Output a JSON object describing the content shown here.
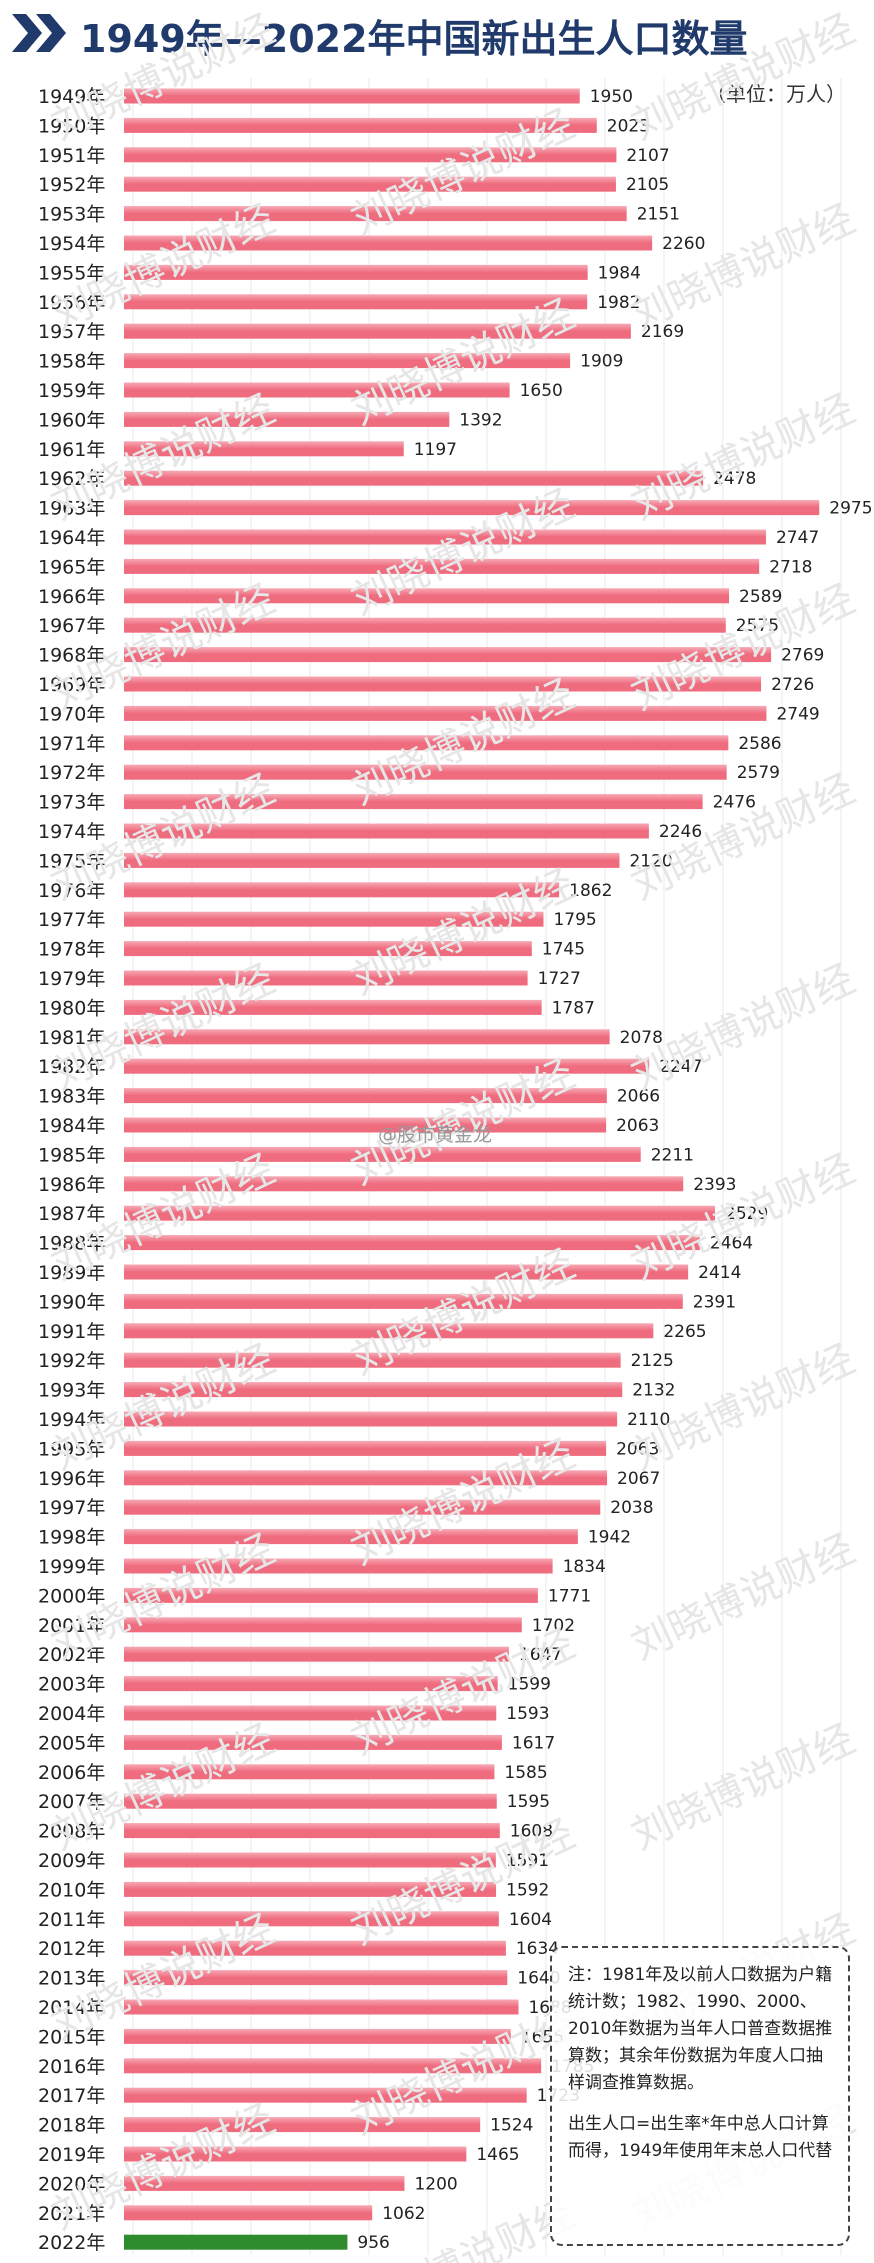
{
  "header": {
    "title": "1949年—2022年中国新出生人口数量",
    "unit": "（单位：万人）"
  },
  "watermark": {
    "text": "刘晓博说财经"
  },
  "weibo": {
    "text": "@股市黄金龙"
  },
  "note": {
    "paragraph1": "注：1981年及以前人口数据为户籍统计数；1982、1990、2000、2010年数据为当年人口普查数据推算数；其余年份数据为年度人口抽样调查推算数据。",
    "paragraph2": "出生人口=出生率*年中总人口计算而得，1949年使用年末总人口代替"
  },
  "colors": {
    "bar": "#ef6b7e",
    "bar_light": "#f7a9b4",
    "highlight_bar": "#2e8b2e",
    "title": "#1f3a6b",
    "chevron": "#1f3a6b"
  },
  "chart_data": {
    "type": "bar",
    "orientation": "horizontal",
    "category_suffix": "年",
    "highlight_category": "2022",
    "categories": [
      "1949",
      "1950",
      "1951",
      "1952",
      "1953",
      "1954",
      "1955",
      "1956",
      "1957",
      "1958",
      "1959",
      "1960",
      "1961",
      "1962",
      "1963",
      "1964",
      "1965",
      "1966",
      "1967",
      "1968",
      "1969",
      "1970",
      "1971",
      "1972",
      "1973",
      "1974",
      "1975",
      "1976",
      "1977",
      "1978",
      "1979",
      "1980",
      "1981",
      "1982",
      "1983",
      "1984",
      "1985",
      "1986",
      "1987",
      "1988",
      "1989",
      "1990",
      "1991",
      "1992",
      "1993",
      "1994",
      "1995",
      "1996",
      "1997",
      "1998",
      "1999",
      "2000",
      "2001",
      "2002",
      "2003",
      "2004",
      "2005",
      "2006",
      "2007",
      "2008",
      "2009",
      "2010",
      "2011",
      "2012",
      "2013",
      "2014",
      "2015",
      "2016",
      "2017",
      "2018",
      "2019",
      "2020",
      "2021",
      "2022"
    ],
    "values": [
      1950,
      2023,
      2107,
      2105,
      2151,
      2260,
      1984,
      1982,
      2169,
      1909,
      1650,
      1392,
      1197,
      2478,
      2975,
      2747,
      2718,
      2589,
      2575,
      2769,
      2726,
      2749,
      2586,
      2579,
      2476,
      2246,
      2120,
      1862,
      1795,
      1745,
      1727,
      1787,
      2078,
      2247,
      2066,
      2063,
      2211,
      2393,
      2529,
      2464,
      2414,
      2391,
      2265,
      2125,
      2132,
      2110,
      2063,
      2067,
      2038,
      1942,
      1834,
      1771,
      1702,
      1647,
      1599,
      1593,
      1617,
      1585,
      1595,
      1608,
      1591,
      1592,
      1604,
      1634,
      1640,
      1688,
      1655,
      1785,
      1723,
      1524,
      1465,
      1200,
      1062,
      956
    ],
    "xlim": [
      0,
      3000
    ],
    "grid": true
  }
}
